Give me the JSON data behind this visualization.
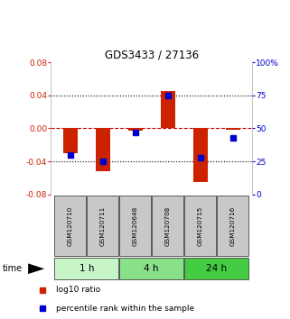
{
  "title": "GDS3433 / 27136",
  "samples": [
    "GSM120710",
    "GSM120711",
    "GSM120648",
    "GSM120708",
    "GSM120715",
    "GSM120716"
  ],
  "log10_ratio": [
    -0.03,
    -0.052,
    -0.003,
    0.045,
    -0.065,
    -0.002
  ],
  "percentile_rank": [
    30,
    25,
    47,
    75,
    28,
    43
  ],
  "groups": [
    {
      "label": "1 h",
      "indices": [
        0,
        1
      ],
      "color": "#c8f5c8"
    },
    {
      "label": "4 h",
      "indices": [
        2,
        3
      ],
      "color": "#88e088"
    },
    {
      "label": "24 h",
      "indices": [
        4,
        5
      ],
      "color": "#44cc44"
    }
  ],
  "bar_color": "#cc2200",
  "dot_color": "#0000cc",
  "ylim_left": [
    -0.08,
    0.08
  ],
  "ylim_right": [
    0,
    100
  ],
  "yticks_left": [
    -0.08,
    -0.04,
    0,
    0.04,
    0.08
  ],
  "yticks_right": [
    0,
    25,
    50,
    75,
    100
  ],
  "ytick_labels_right": [
    "0",
    "25",
    "50",
    "75",
    "100%"
  ],
  "hline_color": "#cc0000",
  "grid_color": "#000000",
  "label_log10": "log10 ratio",
  "label_pct": "percentile rank within the sample",
  "time_label": "time",
  "sample_box_color": "#c8c8c8",
  "sample_box_edge_color": "#444444"
}
